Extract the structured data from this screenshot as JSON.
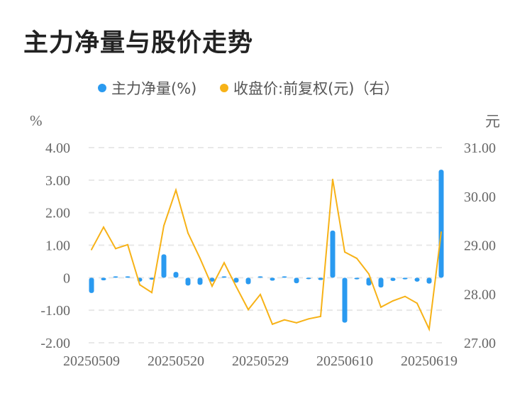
{
  "title": "主力净量与股价走势",
  "chart_data": {
    "type": "bar+line",
    "title": "主力净量与股价走势",
    "legend": [
      "主力净量(%)",
      "收盘价:前复权(元)（右）"
    ],
    "legend_position": "top",
    "left_unit": "%",
    "right_unit": "元",
    "ylim_left": [
      -2,
      4
    ],
    "ylim_right": [
      27,
      31
    ],
    "left_ticks": [
      "4.00",
      "3.00",
      "2.00",
      "1.00",
      "0",
      "-1.00",
      "-2.00"
    ],
    "right_ticks": [
      "31.00",
      "30.00",
      "29.00",
      "28.00",
      "27.00"
    ],
    "x_tick_labels": [
      "20250509",
      "20250520",
      "20250529",
      "20250610",
      "20250619"
    ],
    "x": [
      "20250509",
      "20250512",
      "20250513",
      "20250514",
      "20250515",
      "20250516",
      "20250519",
      "20250520",
      "20250521",
      "20250522",
      "20250523",
      "20250526",
      "20250527",
      "20250528",
      "20250529",
      "20250530",
      "20250603",
      "20250604",
      "20250605",
      "20250606",
      "20250609",
      "20250610",
      "20250611",
      "20250612",
      "20250613",
      "20250616",
      "20250617",
      "20250618",
      "20250619",
      "20250620"
    ],
    "series": [
      {
        "name": "主力净量(%)",
        "type": "bar",
        "axis": "left",
        "color": "#2a9af0",
        "values": [
          -0.47,
          -0.08,
          0.0,
          0.03,
          -0.12,
          -0.06,
          0.72,
          0.18,
          -0.24,
          -0.22,
          -0.12,
          0.02,
          -0.15,
          -0.2,
          0.02,
          -0.09,
          0.01,
          -0.17,
          -0.04,
          -0.07,
          1.45,
          -1.38,
          -0.05,
          -0.24,
          -0.3,
          -0.1,
          -0.05,
          -0.12,
          -0.18,
          3.32
        ]
      },
      {
        "name": "收盘价:前复权(元)",
        "type": "line",
        "axis": "right",
        "color": "#f7b217",
        "values": [
          28.91,
          29.37,
          28.93,
          29.01,
          28.19,
          28.03,
          29.4,
          30.13,
          29.25,
          28.73,
          28.16,
          28.64,
          28.15,
          27.68,
          27.99,
          27.38,
          27.47,
          27.41,
          27.49,
          27.54,
          30.35,
          28.86,
          28.73,
          28.41,
          27.73,
          27.86,
          27.95,
          27.81,
          27.28,
          29.27
        ]
      }
    ],
    "grid": true
  }
}
